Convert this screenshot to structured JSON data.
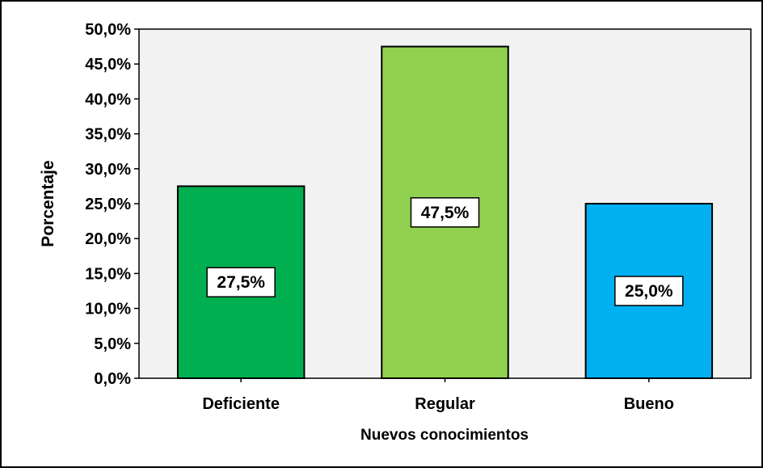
{
  "chart_data": {
    "type": "bar",
    "title": "",
    "xlabel": "Nuevos conocimientos",
    "ylabel": "Porcentaje",
    "categories": [
      "Deficiente",
      "Regular",
      "Bueno"
    ],
    "values": [
      27.5,
      47.5,
      25.0
    ],
    "value_labels": [
      "27,5%",
      "47,5%",
      "25,0%"
    ],
    "bar_colors": [
      "#00b050",
      "#92d050",
      "#00b0f0"
    ],
    "ylim": [
      0,
      50
    ],
    "yticks": [
      0,
      5,
      10,
      15,
      20,
      25,
      30,
      35,
      40,
      45,
      50
    ],
    "ytick_labels": [
      "0,0%",
      "5,0%",
      "10,0%",
      "15,0%",
      "20,0%",
      "25,0%",
      "30,0%",
      "35,0%",
      "40,0%",
      "45,0%",
      "50,0%"
    ],
    "grid": false,
    "legend": "none",
    "plot_background": "#f2f2f2"
  }
}
